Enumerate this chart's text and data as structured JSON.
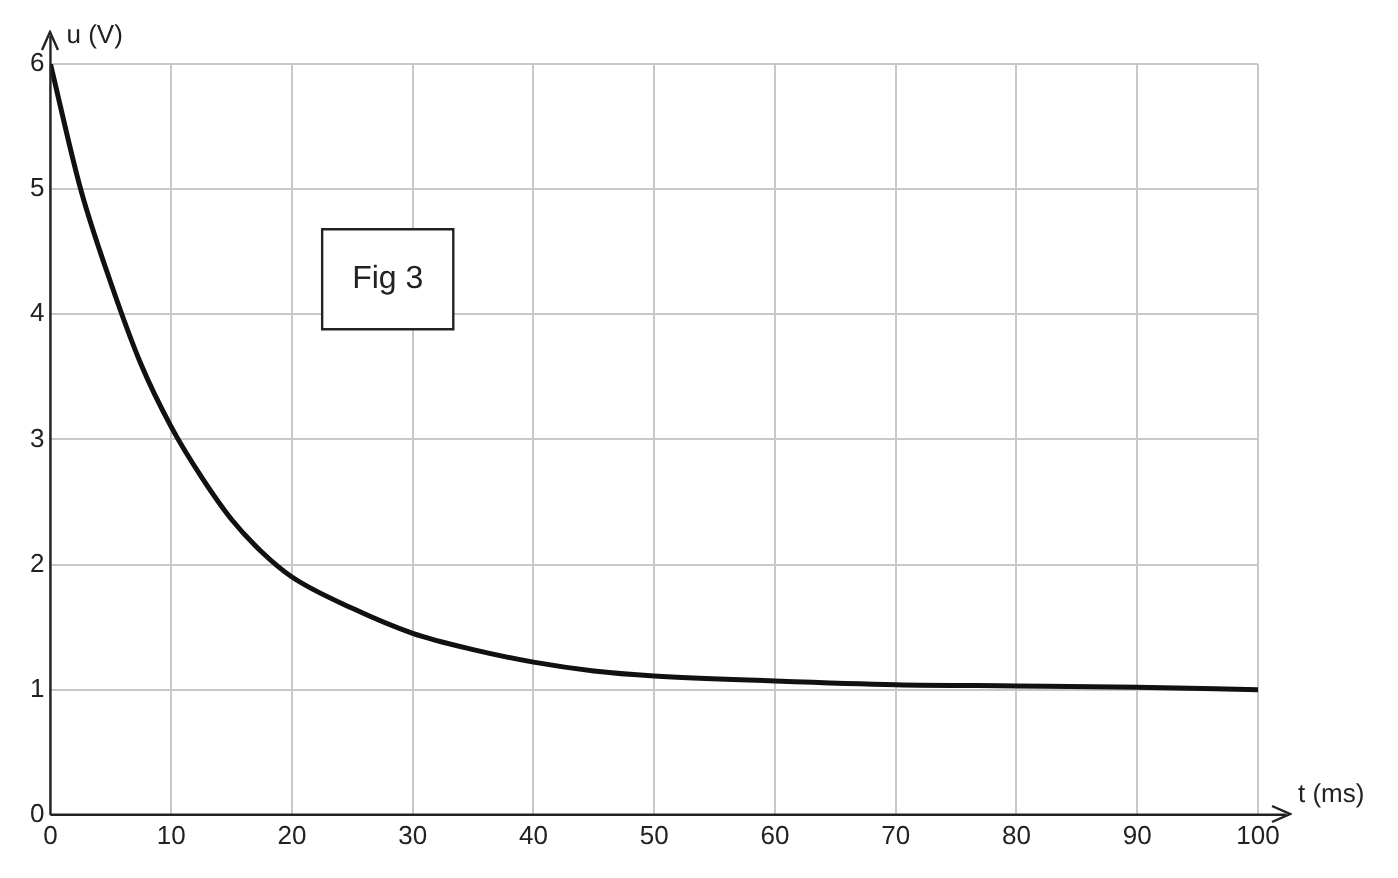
{
  "chart_data": {
    "type": "line",
    "xlabel": "t (ms)",
    "ylabel": "u (V)",
    "annotations": [
      "Fig 3"
    ],
    "x": [
      0,
      2.5,
      5,
      7.5,
      10,
      12.5,
      15,
      17.5,
      20,
      25,
      30,
      35,
      40,
      45,
      50,
      60,
      70,
      80,
      90,
      100
    ],
    "series": [
      {
        "color": "#111111",
        "values": [
          6,
          5.0,
          4.25,
          3.6,
          3.1,
          2.7,
          2.36,
          2.1,
          1.9,
          1.65,
          1.45,
          1.32,
          1.22,
          1.15,
          1.11,
          1.07,
          1.04,
          1.03,
          1.02,
          1.0
        ]
      }
    ],
    "xlim": [
      0,
      100
    ],
    "xticks": [
      0,
      10,
      20,
      30,
      40,
      50,
      60,
      70,
      80,
      90,
      100
    ],
    "ylim": [
      0,
      6
    ],
    "yticks": [
      0,
      1,
      2,
      3,
      4,
      5,
      6
    ],
    "grid": true,
    "legend": false,
    "marker": "none",
    "line_style": "solid"
  }
}
